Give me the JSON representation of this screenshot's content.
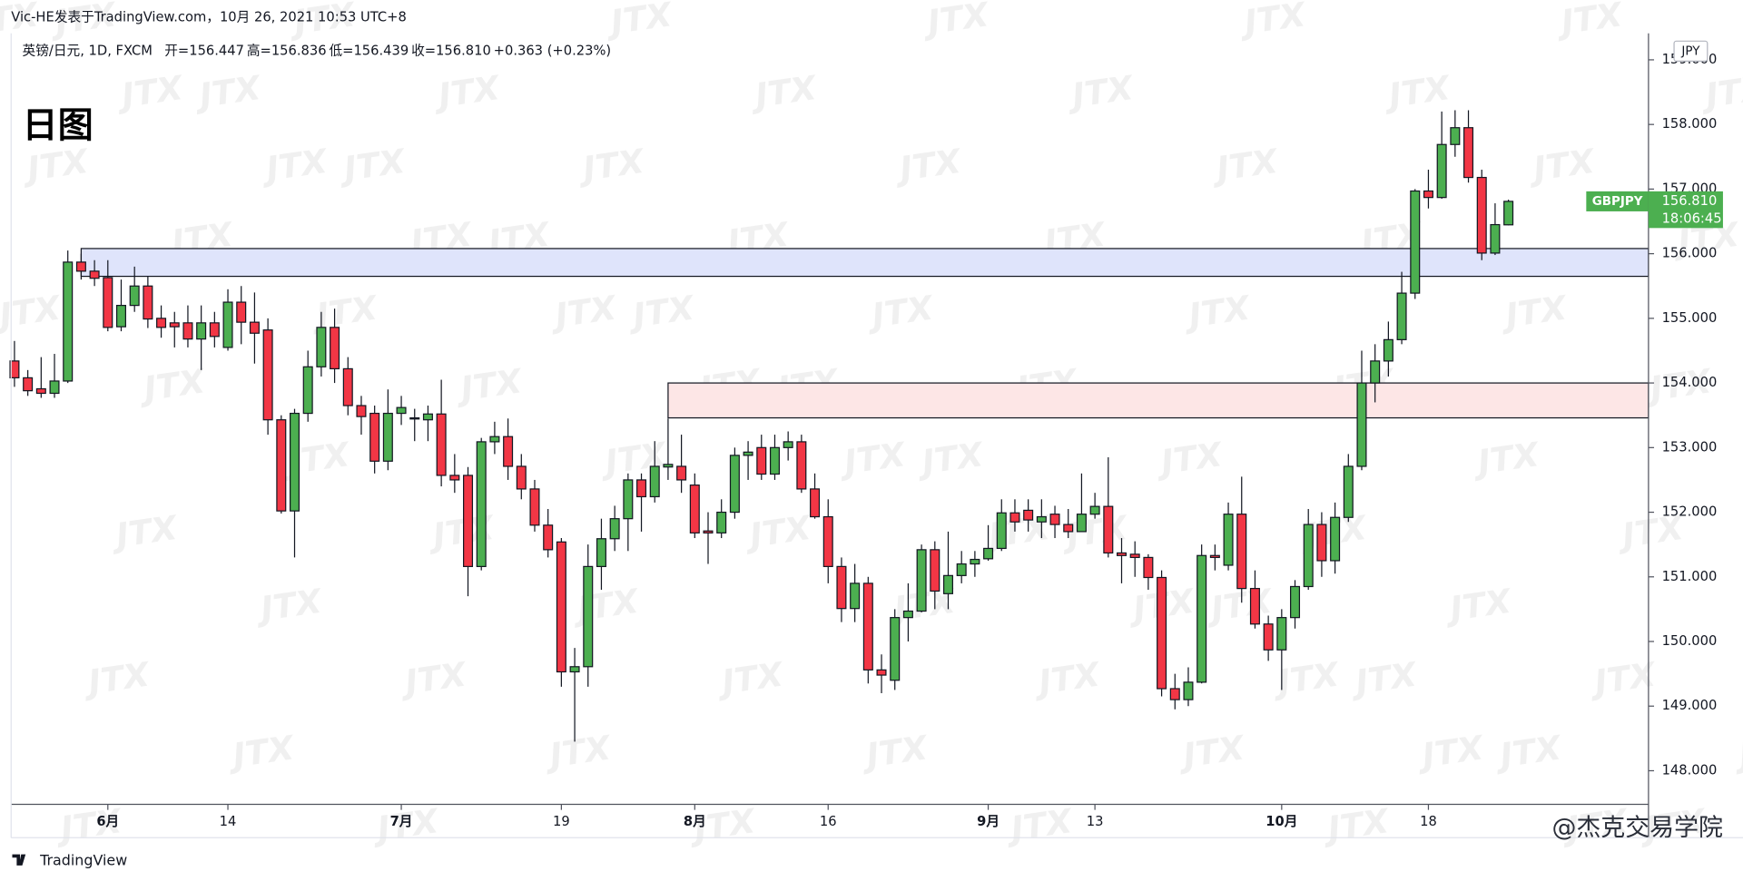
{
  "header": {
    "author_line": "Vic-HE发表于TradingView.com，10月 26, 2021 10:53 UTC+8",
    "symbol": "英镑/日元, 1D, FXCM",
    "quote": [
      "开=156.447",
      "高=156.836",
      "低=156.439",
      "收=156.810",
      "+0.363 (+0.23%)"
    ]
  },
  "chart_data": {
    "type": "candlestick",
    "title": "日图",
    "currency": "JPY",
    "categories": [
      null,
      null,
      null,
      null,
      null,
      null,
      null,
      "6月",
      null,
      null,
      null,
      null,
      null,
      null,
      null,
      null,
      "14",
      null,
      null,
      null,
      null,
      null,
      null,
      null,
      null,
      null,
      null,
      null,
      null,
      "7月",
      null,
      null,
      null,
      null,
      null,
      null,
      null,
      null,
      null,
      null,
      null,
      "19",
      null,
      null,
      null,
      null,
      null,
      null,
      null,
      null,
      null,
      "8月",
      null,
      null,
      null,
      null,
      null,
      null,
      null,
      null,
      null,
      "16",
      null,
      null,
      null,
      null,
      null,
      null,
      null,
      null,
      null,
      null,
      null,
      "9月",
      null,
      null,
      null,
      null,
      null,
      null,
      null,
      "13",
      null,
      null,
      null,
      null,
      null,
      null,
      null,
      null,
      null,
      null,
      null,
      null,
      null,
      "10月",
      null,
      null,
      null,
      null,
      null,
      null,
      null,
      null,
      null,
      null,
      "18",
      null,
      null,
      null,
      null,
      null,
      null
    ],
    "open": [
      154.34,
      154.08,
      153.91,
      153.84,
      154.03,
      155.87,
      155.73,
      155.63,
      154.87,
      155.2,
      155.5,
      155.0,
      154.93,
      154.93,
      154.68,
      154.93,
      154.55,
      155.25,
      154.94,
      154.82,
      153.43,
      152.02,
      153.53,
      154.25,
      154.86,
      154.22,
      153.65,
      153.53,
      152.79,
      153.53,
      153.45,
      153.43,
      153.52,
      152.57,
      152.57,
      151.16,
      153.09,
      153.17,
      152.71,
      152.36,
      151.8,
      151.54,
      149.53,
      149.61,
      151.16,
      151.59,
      151.9,
      152.5,
      152.24,
      152.7,
      152.71,
      152.42,
      151.71,
      151.68,
      152.0,
      152.88,
      153.0,
      152.59,
      153.0,
      153.09,
      152.36,
      151.93,
      151.16,
      150.51,
      150.9,
      149.56,
      149.4,
      150.37,
      150.47,
      151.42,
      150.74,
      151.02,
      151.2,
      151.28,
      151.44,
      151.99,
      152.03,
      151.85,
      151.97,
      151.81,
      151.7,
      151.97,
      152.09,
      151.37,
      151.35,
      151.3,
      150.99,
      149.27,
      149.1,
      149.37,
      151.33,
      151.18,
      151.97,
      150.82,
      150.27,
      149.87,
      150.37,
      150.85,
      151.81,
      151.25,
      151.92,
      152.71,
      154.0,
      154.34,
      154.67,
      155.39,
      156.97,
      156.87,
      157.69,
      157.95,
      157.18,
      156.01,
      156.447
    ],
    "high": [
      154.65,
      154.2,
      154.4,
      154.45,
      156.05,
      156.0,
      155.9,
      155.9,
      155.6,
      155.8,
      155.65,
      155.2,
      155.1,
      155.2,
      155.2,
      155.1,
      155.45,
      155.5,
      155.4,
      155.0,
      153.5,
      153.6,
      154.5,
      155.1,
      155.15,
      154.4,
      153.8,
      153.65,
      153.9,
      153.8,
      153.6,
      153.65,
      154.05,
      152.9,
      152.7,
      153.15,
      153.4,
      153.45,
      152.9,
      152.5,
      152.05,
      151.6,
      149.9,
      151.5,
      151.9,
      152.1,
      152.6,
      152.6,
      153.1,
      153.45,
      153.2,
      152.6,
      152.0,
      152.2,
      153.0,
      153.1,
      153.2,
      153.2,
      153.25,
      153.2,
      152.6,
      152.2,
      151.3,
      151.2,
      151.0,
      149.8,
      150.5,
      150.9,
      151.5,
      151.55,
      151.7,
      151.4,
      151.4,
      151.8,
      152.2,
      152.2,
      152.2,
      152.2,
      152.1,
      152.05,
      152.6,
      152.3,
      152.85,
      151.6,
      151.55,
      151.35,
      151.1,
      149.5,
      149.6,
      151.5,
      151.5,
      152.15,
      152.55,
      151.1,
      150.4,
      150.5,
      150.95,
      152.05,
      152.0,
      152.15,
      152.9,
      154.5,
      154.6,
      154.95,
      155.72,
      157.0,
      157.3,
      158.2,
      158.22,
      158.22,
      157.3,
      156.78,
      156.836
    ],
    "low": [
      153.94,
      153.8,
      153.77,
      153.77,
      154.0,
      155.6,
      155.5,
      154.8,
      154.8,
      155.1,
      154.85,
      154.7,
      154.55,
      154.55,
      154.2,
      154.55,
      154.5,
      154.6,
      154.3,
      153.2,
      151.98,
      151.3,
      153.4,
      154.1,
      154.0,
      153.5,
      153.2,
      152.6,
      152.65,
      153.35,
      153.1,
      153.1,
      152.4,
      152.3,
      150.7,
      151.1,
      152.9,
      152.5,
      152.2,
      151.7,
      151.3,
      149.3,
      148.45,
      149.3,
      150.8,
      151.4,
      151.4,
      151.7,
      152.15,
      152.5,
      152.3,
      151.6,
      151.2,
      151.6,
      151.9,
      152.5,
      152.5,
      152.5,
      152.8,
      152.3,
      151.9,
      150.9,
      150.3,
      150.3,
      149.35,
      149.2,
      149.25,
      150.0,
      150.45,
      150.5,
      150.5,
      150.9,
      151.0,
      151.25,
      151.4,
      151.7,
      151.7,
      151.6,
      151.6,
      151.6,
      151.7,
      151.9,
      151.3,
      150.9,
      151.0,
      150.8,
      149.15,
      148.95,
      149.0,
      149.35,
      151.1,
      151.1,
      150.6,
      150.2,
      149.7,
      149.25,
      150.2,
      150.8,
      151.0,
      151.05,
      151.85,
      152.65,
      153.7,
      154.1,
      154.6,
      155.3,
      156.7,
      156.85,
      157.5,
      157.1,
      155.9,
      155.98,
      156.439
    ],
    "close": [
      154.08,
      153.88,
      153.84,
      154.03,
      155.87,
      155.73,
      155.62,
      154.86,
      155.2,
      155.5,
      154.99,
      154.86,
      154.87,
      154.68,
      154.93,
      154.72,
      155.25,
      154.94,
      154.77,
      153.43,
      152.02,
      153.53,
      154.25,
      154.86,
      154.22,
      153.65,
      153.48,
      152.79,
      153.53,
      153.62,
      153.46,
      153.52,
      152.57,
      152.5,
      151.16,
      153.09,
      153.17,
      152.71,
      152.36,
      151.8,
      151.42,
      149.53,
      149.61,
      151.16,
      151.59,
      151.9,
      152.5,
      152.24,
      152.71,
      152.74,
      152.5,
      151.68,
      151.68,
      152.0,
      152.88,
      152.93,
      152.59,
      153.0,
      153.09,
      152.36,
      151.93,
      151.16,
      150.51,
      150.9,
      149.56,
      149.48,
      150.37,
      150.47,
      151.42,
      150.78,
      151.02,
      151.2,
      151.27,
      151.44,
      151.99,
      151.85,
      151.88,
      151.93,
      151.81,
      151.7,
      151.97,
      152.09,
      151.37,
      151.33,
      151.3,
      150.99,
      149.27,
      149.1,
      149.37,
      151.33,
      151.3,
      151.97,
      150.82,
      150.27,
      149.87,
      150.37,
      150.85,
      151.81,
      151.25,
      151.92,
      152.71,
      154.0,
      154.34,
      154.67,
      155.39,
      156.97,
      156.87,
      157.69,
      157.95,
      157.18,
      156.01,
      156.45,
      156.81
    ],
    "up_color": "#4caf50",
    "down_color": "#f23645",
    "ylim": [
      147.48,
      159.41
    ],
    "yticks": [
      {
        "value": 148,
        "label": "148.000"
      },
      {
        "value": 149,
        "label": "149.000"
      },
      {
        "value": 150,
        "label": "150.000"
      },
      {
        "value": 151,
        "label": "151.000"
      },
      {
        "value": 152,
        "label": "152.000"
      },
      {
        "value": 153,
        "label": "153.000"
      },
      {
        "value": 154,
        "label": "154.000"
      },
      {
        "value": 155,
        "label": "155.000"
      },
      {
        "value": 156,
        "label": "156.000"
      },
      {
        "value": 157,
        "label": "157.000"
      },
      {
        "value": 158,
        "label": "158.000"
      },
      {
        "value": 159,
        "label": "159.000"
      }
    ],
    "zones": [
      {
        "start": 5,
        "high": 156.08,
        "low": 155.65,
        "color": "#dfe4fb"
      },
      {
        "start": 49,
        "high": 154.0,
        "low": 153.46,
        "color": "#fde6e6"
      }
    ],
    "price_tag": {
      "symbol": "GBPJPY",
      "value": 156.81,
      "label": "156.810",
      "countdown": "18:06:45",
      "color": "#4caf50"
    }
  },
  "watermark": "JTX",
  "footer": {
    "brand": "TradingView",
    "credit": "@杰克交易学院"
  }
}
